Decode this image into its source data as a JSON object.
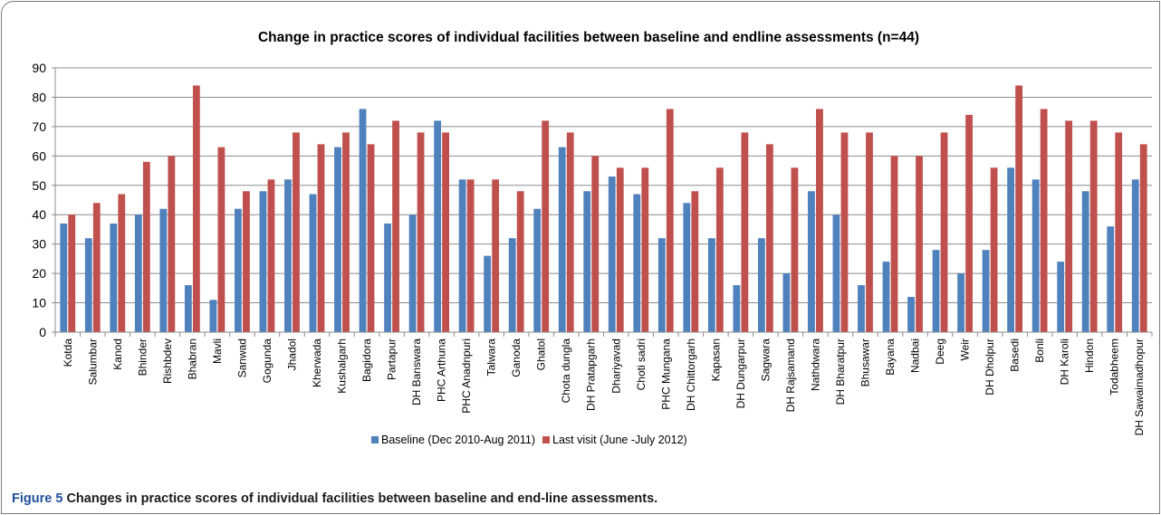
{
  "chart_data": {
    "type": "bar",
    "title": "Change in practice scores of individual facilities between baseline and endline assessments (n=44)",
    "xlabel": "",
    "ylabel": "",
    "ylim": [
      0,
      90
    ],
    "yticks": [
      0,
      10,
      20,
      30,
      40,
      50,
      60,
      70,
      80,
      90
    ],
    "grid": true,
    "legend": "bottom",
    "categories": [
      "Kotda",
      "Salumbar",
      "Kanod",
      "Bhinder",
      "Rishbdev",
      "Bhabran",
      "Mavli",
      "Sanwad",
      "Gogunda",
      "Jhadol",
      "Kherwada",
      "Kushalgarh",
      "Bagidora",
      "Partapur",
      "DH Banswara",
      "PHC Arthuna",
      "PHC Anadnpuri",
      "Talwara",
      "Ganoda",
      "Ghatol",
      "Chota dungla",
      "DH Pratapgarh",
      "Dhariyavad",
      "Choti sadri",
      "PHC Mungana",
      "DH Chittorgarh",
      "Kapasan",
      "DH Dungarpur",
      "Sagwara",
      "DH Rajsamand",
      "Nathdwara",
      "DH Bharatpur",
      "Bhusawar",
      "Bayana",
      "Nadbai",
      "Deeg",
      "Weir",
      "DH Dholpur",
      "Basedi",
      "Bonli",
      "DH Karoli",
      "Hindon",
      "Todabheem",
      "DH Sawaimadhopur"
    ],
    "series": [
      {
        "name": "Baseline (Dec 2010-Aug 2011)",
        "color": "#4f81bd",
        "values": [
          37,
          32,
          37,
          40,
          42,
          16,
          11,
          42,
          48,
          52,
          47,
          63,
          76,
          37,
          40,
          72,
          52,
          26,
          32,
          42,
          63,
          48,
          53,
          47,
          32,
          44,
          32,
          16,
          32,
          20,
          48,
          40,
          16,
          24,
          12,
          28,
          20,
          28,
          56,
          52,
          24,
          48,
          36,
          52
        ]
      },
      {
        "name": "Last visit (June -July 2012)",
        "color": "#c0504d",
        "values": [
          40,
          44,
          47,
          58,
          60,
          84,
          63,
          48,
          52,
          68,
          64,
          68,
          64,
          72,
          68,
          68,
          52,
          52,
          48,
          72,
          68,
          60,
          56,
          56,
          76,
          48,
          56,
          68,
          64,
          56,
          76,
          68,
          68,
          60,
          60,
          68,
          74,
          56,
          84,
          76,
          72,
          72,
          68,
          64
        ]
      }
    ]
  },
  "caption": {
    "label": "Figure 5",
    "text": "Changes in practice scores of individual facilities between baseline and end-line assessments."
  }
}
